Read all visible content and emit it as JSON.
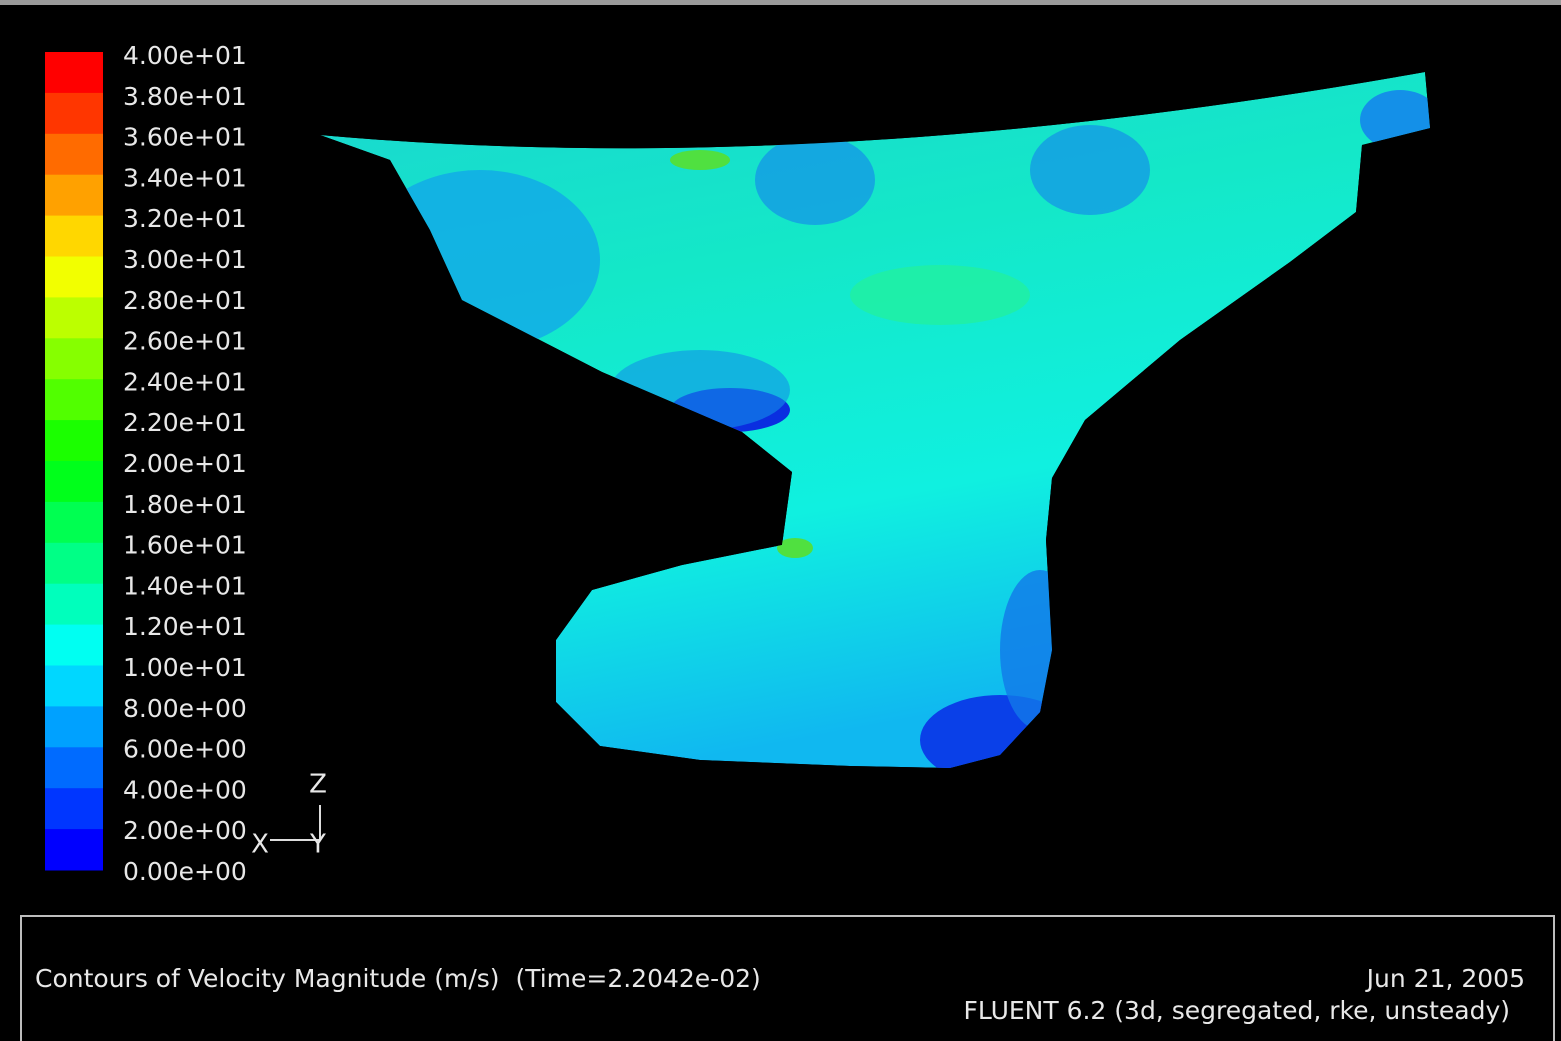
{
  "colorbar": {
    "labels": [
      "4.00e+01",
      "3.80e+01",
      "3.60e+01",
      "3.40e+01",
      "3.20e+01",
      "3.00e+01",
      "2.80e+01",
      "2.60e+01",
      "2.40e+01",
      "2.20e+01",
      "2.00e+01",
      "1.80e+01",
      "1.60e+01",
      "1.40e+01",
      "1.20e+01",
      "1.00e+01",
      "8.00e+00",
      "6.00e+00",
      "4.00e+00",
      "2.00e+00",
      "0.00e+00"
    ]
  },
  "axes": {
    "z": "Z",
    "x": "X",
    "y": "Y"
  },
  "footer": {
    "title": "Contours of Velocity Magnitude (m/s)  (Time=2.2042e-02)",
    "date": "Jun 21, 2005",
    "solver": "FLUENT 6.2 (3d, segregated, rke, unsteady)"
  }
}
